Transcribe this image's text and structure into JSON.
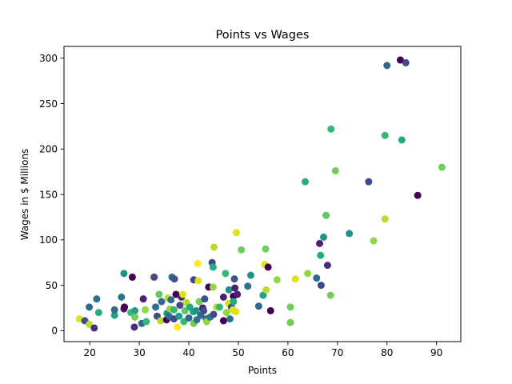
{
  "chart_data": {
    "type": "scatter",
    "title": "Points vs Wages",
    "xlabel": "Points",
    "ylabel": "Wages in $ Millions",
    "xlim": [
      14.8,
      94.9
    ],
    "ylim": [
      -12,
      313
    ],
    "xticks": [
      20,
      30,
      40,
      50,
      60,
      70,
      80,
      90
    ],
    "yticks": [
      0,
      50,
      100,
      150,
      200,
      250,
      300
    ],
    "grid": false,
    "colormap": "viridis",
    "points": [
      {
        "x": 17.9,
        "y": 13,
        "color": "#dde318"
      },
      {
        "x": 19.0,
        "y": 11,
        "color": "#3e4a89"
      },
      {
        "x": 19.9,
        "y": 7,
        "color": "#b5de2b"
      },
      {
        "x": 19.9,
        "y": 26,
        "color": "#31688e"
      },
      {
        "x": 20.9,
        "y": 3,
        "color": "#472d7b"
      },
      {
        "x": 21.4,
        "y": 35,
        "color": "#2c728e"
      },
      {
        "x": 21.8,
        "y": 20,
        "color": "#25ab82"
      },
      {
        "x": 25.0,
        "y": 17,
        "color": "#1fa187"
      },
      {
        "x": 25.0,
        "y": 23,
        "color": "#31688e"
      },
      {
        "x": 26.4,
        "y": 37,
        "color": "#2c728e"
      },
      {
        "x": 26.9,
        "y": 63,
        "color": "#21918c"
      },
      {
        "x": 26.9,
        "y": 24,
        "color": "#482173"
      },
      {
        "x": 27.0,
        "y": 26,
        "color": "#440154"
      },
      {
        "x": 28.3,
        "y": 20,
        "color": "#35b779"
      },
      {
        "x": 28.6,
        "y": 59,
        "color": "#440154"
      },
      {
        "x": 29.0,
        "y": 4,
        "color": "#472d7b"
      },
      {
        "x": 29.1,
        "y": 22,
        "color": "#1fa187"
      },
      {
        "x": 29.1,
        "y": 15,
        "color": "#6ece58"
      },
      {
        "x": 30.5,
        "y": 8,
        "color": "#31688e"
      },
      {
        "x": 30.8,
        "y": 35,
        "color": "#482173"
      },
      {
        "x": 31.2,
        "y": 23,
        "color": "#90d743"
      },
      {
        "x": 31.4,
        "y": 10,
        "color": "#35b779"
      },
      {
        "x": 32.9,
        "y": 59,
        "color": "#fde725"
      },
      {
        "x": 33.0,
        "y": 59,
        "color": "#3e4a89"
      },
      {
        "x": 33.3,
        "y": 26,
        "color": "#2c728e"
      },
      {
        "x": 33.6,
        "y": 16,
        "color": "#3e4a89"
      },
      {
        "x": 34.0,
        "y": 40,
        "color": "#5ec962"
      },
      {
        "x": 34.3,
        "y": 11,
        "color": "#b5de2b"
      },
      {
        "x": 34.5,
        "y": 32,
        "color": "#31688e"
      },
      {
        "x": 35.5,
        "y": 12,
        "color": "#440154"
      },
      {
        "x": 35.6,
        "y": 19,
        "color": "#21918c"
      },
      {
        "x": 35.8,
        "y": 36,
        "color": "#b5de2b"
      },
      {
        "x": 36.0,
        "y": 16,
        "color": "#2c728e"
      },
      {
        "x": 36.2,
        "y": 24,
        "color": "#90d743"
      },
      {
        "x": 36.4,
        "y": 34,
        "color": "#31688e"
      },
      {
        "x": 36.6,
        "y": 59,
        "color": "#2c728e"
      },
      {
        "x": 37.0,
        "y": 13,
        "color": "#3e4a89"
      },
      {
        "x": 37.0,
        "y": 23,
        "color": "#35b779"
      },
      {
        "x": 37.1,
        "y": 57,
        "color": "#3b528b"
      },
      {
        "x": 37.4,
        "y": 40,
        "color": "#440154"
      },
      {
        "x": 37.7,
        "y": 4,
        "color": "#fde725"
      },
      {
        "x": 38.0,
        "y": 16,
        "color": "#1fa187"
      },
      {
        "x": 38.2,
        "y": 28,
        "color": "#3e4a89"
      },
      {
        "x": 38.5,
        "y": 37,
        "color": "#482173"
      },
      {
        "x": 38.8,
        "y": 40,
        "color": "#dde318"
      },
      {
        "x": 39.0,
        "y": 10,
        "color": "#35b779"
      },
      {
        "x": 39.2,
        "y": 22,
        "color": "#5ec962"
      },
      {
        "x": 39.5,
        "y": 31,
        "color": "#b5de2b"
      },
      {
        "x": 40.0,
        "y": 14,
        "color": "#31688e"
      },
      {
        "x": 40.2,
        "y": 26,
        "color": "#25ab82"
      },
      {
        "x": 40.9,
        "y": 21,
        "color": "#1fa187"
      },
      {
        "x": 41.0,
        "y": 8,
        "color": "#6ece58"
      },
      {
        "x": 41.0,
        "y": 56,
        "color": "#3e4a89"
      },
      {
        "x": 41.5,
        "y": 22,
        "color": "#21918c"
      },
      {
        "x": 41.6,
        "y": 12,
        "color": "#2c728e"
      },
      {
        "x": 41.8,
        "y": 74,
        "color": "#fde725"
      },
      {
        "x": 41.9,
        "y": 55,
        "color": "#dde318"
      },
      {
        "x": 42.1,
        "y": 32,
        "color": "#6ece58"
      },
      {
        "x": 42.4,
        "y": 17,
        "color": "#31688e"
      },
      {
        "x": 42.8,
        "y": 25,
        "color": "#482173"
      },
      {
        "x": 43.0,
        "y": 22,
        "color": "#3e4a89"
      },
      {
        "x": 43.2,
        "y": 35,
        "color": "#3b528b"
      },
      {
        "x": 43.5,
        "y": 13,
        "color": "#31688e"
      },
      {
        "x": 43.6,
        "y": 10,
        "color": "#90d743"
      },
      {
        "x": 44.0,
        "y": 48,
        "color": "#440154"
      },
      {
        "x": 44.3,
        "y": 15,
        "color": "#2c728e"
      },
      {
        "x": 44.7,
        "y": 75,
        "color": "#3e4a89"
      },
      {
        "x": 44.9,
        "y": 70,
        "color": "#25ab82"
      },
      {
        "x": 44.9,
        "y": 48,
        "color": "#90d743"
      },
      {
        "x": 45.0,
        "y": 18,
        "color": "#3e4a89"
      },
      {
        "x": 45.1,
        "y": 92,
        "color": "#b5de2b"
      },
      {
        "x": 45.6,
        "y": 26,
        "color": "#b5de2b"
      },
      {
        "x": 46.2,
        "y": 26,
        "color": "#35b779"
      },
      {
        "x": 47.0,
        "y": 37,
        "color": "#482173"
      },
      {
        "x": 47.0,
        "y": 11,
        "color": "#440154"
      },
      {
        "x": 47.4,
        "y": 63,
        "color": "#35b779"
      },
      {
        "x": 47.6,
        "y": 20,
        "color": "#90d743"
      },
      {
        "x": 48.0,
        "y": 30,
        "color": "#dde318"
      },
      {
        "x": 48.1,
        "y": 45,
        "color": "#21918c"
      },
      {
        "x": 48.3,
        "y": 13,
        "color": "#2c728e"
      },
      {
        "x": 48.6,
        "y": 26,
        "color": "#3e4a89"
      },
      {
        "x": 48.9,
        "y": 23,
        "color": "#dde318"
      },
      {
        "x": 49.0,
        "y": 38,
        "color": "#440154"
      },
      {
        "x": 49.0,
        "y": 32,
        "color": "#25ab82"
      },
      {
        "x": 49.2,
        "y": 57,
        "color": "#3b528b"
      },
      {
        "x": 49.3,
        "y": 47,
        "color": "#482173"
      },
      {
        "x": 49.5,
        "y": 21,
        "color": "#dde318"
      },
      {
        "x": 49.6,
        "y": 108,
        "color": "#dde318"
      },
      {
        "x": 49.8,
        "y": 40,
        "color": "#482173"
      },
      {
        "x": 50.6,
        "y": 89,
        "color": "#6ece58"
      },
      {
        "x": 51.9,
        "y": 49,
        "color": "#2c728e"
      },
      {
        "x": 52.5,
        "y": 61,
        "color": "#21918c"
      },
      {
        "x": 54.1,
        "y": 27,
        "color": "#31688e"
      },
      {
        "x": 55.0,
        "y": 39,
        "color": "#1fa187"
      },
      {
        "x": 55.3,
        "y": 73,
        "color": "#dde318"
      },
      {
        "x": 55.5,
        "y": 90,
        "color": "#6ece58"
      },
      {
        "x": 55.6,
        "y": 45,
        "color": "#b5de2b"
      },
      {
        "x": 56.0,
        "y": 70,
        "color": "#440154"
      },
      {
        "x": 56.5,
        "y": 22,
        "color": "#440154"
      },
      {
        "x": 57.8,
        "y": 56,
        "color": "#90d743"
      },
      {
        "x": 60.5,
        "y": 26,
        "color": "#6ece58"
      },
      {
        "x": 60.5,
        "y": 9,
        "color": "#6ece58"
      },
      {
        "x": 61.5,
        "y": 57,
        "color": "#dde318"
      },
      {
        "x": 63.5,
        "y": 164,
        "color": "#25ab82"
      },
      {
        "x": 64.0,
        "y": 63,
        "color": "#90d743"
      },
      {
        "x": 65.8,
        "y": 58,
        "color": "#31688e"
      },
      {
        "x": 66.4,
        "y": 96,
        "color": "#482173"
      },
      {
        "x": 66.6,
        "y": 83,
        "color": "#25ab82"
      },
      {
        "x": 66.7,
        "y": 50,
        "color": "#3e4a89"
      },
      {
        "x": 67.2,
        "y": 103,
        "color": "#21918c"
      },
      {
        "x": 67.7,
        "y": 127,
        "color": "#5ec962"
      },
      {
        "x": 68.0,
        "y": 72,
        "color": "#472d7b"
      },
      {
        "x": 68.6,
        "y": 39,
        "color": "#6ece58"
      },
      {
        "x": 68.7,
        "y": 222,
        "color": "#35b779"
      },
      {
        "x": 69.6,
        "y": 176,
        "color": "#6ece58"
      },
      {
        "x": 72.4,
        "y": 107,
        "color": "#21918c"
      },
      {
        "x": 76.3,
        "y": 164,
        "color": "#3e4a89"
      },
      {
        "x": 77.3,
        "y": 99,
        "color": "#90d743"
      },
      {
        "x": 79.6,
        "y": 123,
        "color": "#b5de2b"
      },
      {
        "x": 79.6,
        "y": 215,
        "color": "#35b779"
      },
      {
        "x": 80.0,
        "y": 292,
        "color": "#31688e"
      },
      {
        "x": 82.7,
        "y": 298,
        "color": "#440154"
      },
      {
        "x": 83.0,
        "y": 210,
        "color": "#25ab82"
      },
      {
        "x": 83.8,
        "y": 295,
        "color": "#3e4a89"
      },
      {
        "x": 86.2,
        "y": 149,
        "color": "#440154"
      },
      {
        "x": 91.1,
        "y": 180,
        "color": "#6ece58"
      }
    ]
  }
}
